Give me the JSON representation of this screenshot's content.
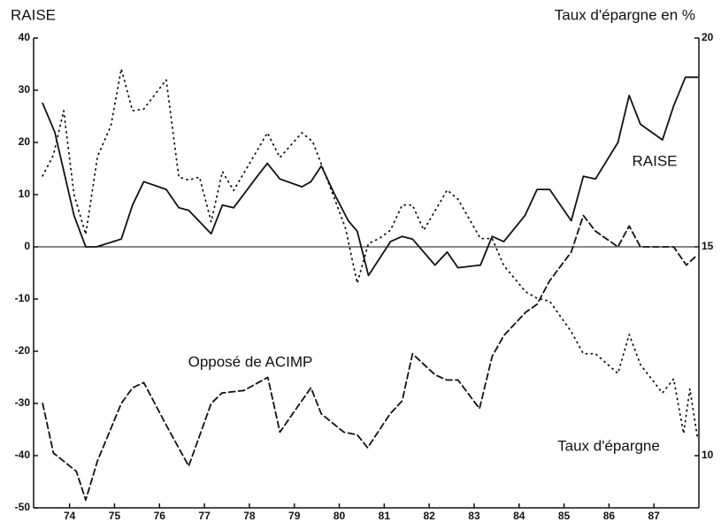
{
  "chart_data": {
    "type": "line",
    "ylabel": "RAISE",
    "y2label": "Taux d'épargne en %",
    "xlim": [
      73.2,
      88.0
    ],
    "xticks": [
      74,
      75,
      76,
      77,
      78,
      79,
      80,
      81,
      82,
      83,
      84,
      85,
      86,
      87
    ],
    "ylim": [
      -50,
      40
    ],
    "yticks": [
      -50,
      -40,
      -30,
      -20,
      -10,
      0,
      10,
      20,
      30,
      40
    ],
    "y2lim": [
      8.75,
      20
    ],
    "y2ticks": [
      10,
      15,
      20
    ],
    "reference_line": 0,
    "series": [
      {
        "name": "RAISE",
        "color": "#111111",
        "style": "solid",
        "x": [
          73.4,
          73.67,
          74.1,
          74.36,
          74.6,
          75.15,
          75.4,
          75.65,
          76.15,
          76.43,
          76.65,
          77.15,
          77.4,
          77.65,
          78.13,
          78.4,
          78.68,
          79.17,
          79.37,
          79.6,
          79.9,
          80.2,
          80.4,
          80.65,
          81.14,
          81.4,
          81.63,
          82.13,
          82.4,
          82.64,
          83.14,
          83.4,
          83.66,
          84.13,
          84.4,
          84.68,
          85.16,
          85.43,
          85.7,
          86.2,
          86.45,
          86.7,
          87.19,
          87.44,
          87.7,
          87.97
        ],
        "values": [
          27.5,
          22,
          6,
          0,
          0,
          1.5,
          8,
          12.5,
          11,
          7.5,
          7,
          2.5,
          8,
          7.5,
          13,
          16,
          13,
          11.5,
          12.5,
          15.5,
          10,
          5,
          3,
          -5.5,
          1,
          2,
          1.5,
          -3.5,
          -1,
          -4,
          -3.5,
          2,
          1,
          6,
          11,
          11,
          5,
          13.5,
          13,
          20,
          29,
          23.5,
          20.5,
          27,
          32.5,
          32.5
        ]
      },
      {
        "name": "Opposé de ACIMP",
        "color": "#111111",
        "style": "dashed",
        "x": [
          73.4,
          73.64,
          74.15,
          74.36,
          74.62,
          75.15,
          75.4,
          75.65,
          76.14,
          76.65,
          77.15,
          77.39,
          77.88,
          78.41,
          78.68,
          78.96,
          79.37,
          79.6,
          80.1,
          80.4,
          80.63,
          81.13,
          81.4,
          81.63,
          82.13,
          82.39,
          82.64,
          83.12,
          83.4,
          83.66,
          84.15,
          84.4,
          84.68,
          85.16,
          85.43,
          85.7,
          86.2,
          86.45,
          86.7,
          87.19,
          87.44,
          87.72,
          87.97
        ],
        "values": [
          -30,
          -39.5,
          -43,
          -48.5,
          -41,
          -30,
          -27,
          -26,
          -34,
          -42,
          -30,
          -28,
          -27.5,
          -25,
          -35.5,
          -32,
          -27,
          -32,
          -35.5,
          -36,
          -38.5,
          -32,
          -29.5,
          -20.5,
          -24.5,
          -25.5,
          -25.5,
          -31,
          -21,
          -17,
          -12.5,
          -11,
          -6.5,
          -1,
          6,
          3,
          0,
          4,
          0,
          0,
          0,
          -3.5,
          -1.5
        ]
      },
      {
        "name": "Taux d'épargne",
        "color": "#111111",
        "style": "dotted",
        "axis": "y2",
        "x": [
          73.4,
          73.64,
          73.87,
          74.1,
          74.36,
          74.62,
          74.92,
          75.15,
          75.4,
          75.65,
          76.15,
          76.43,
          76.65,
          76.89,
          77.15,
          77.4,
          77.65,
          78.17,
          78.4,
          78.68,
          79.17,
          79.41,
          79.9,
          80.14,
          80.4,
          80.65,
          80.89,
          81.14,
          81.4,
          81.63,
          81.88,
          82.4,
          82.64,
          83.14,
          83.4,
          83.66,
          84.15,
          84.4,
          84.68,
          85.16,
          85.43,
          85.7,
          86.2,
          86.45,
          86.7,
          87.19,
          87.44,
          87.66,
          87.8,
          87.97
        ],
        "values": [
          16.7,
          17.2,
          18.26,
          16.25,
          15.3,
          17.16,
          17.9,
          19.26,
          18.26,
          18.3,
          19.0,
          16.67,
          16.6,
          16.67,
          15.6,
          16.8,
          16.35,
          17.3,
          17.73,
          17.14,
          17.73,
          17.52,
          16.14,
          15.44,
          14.13,
          15.08,
          15.2,
          15.4,
          16.0,
          16.0,
          15.4,
          16.36,
          16.14,
          15.2,
          15.2,
          14.55,
          13.92,
          13.77,
          13.7,
          12.97,
          12.44,
          12.44,
          11.97,
          12.9,
          12.18,
          11.5,
          11.84,
          10.53,
          11.6,
          10.42
        ]
      }
    ]
  }
}
